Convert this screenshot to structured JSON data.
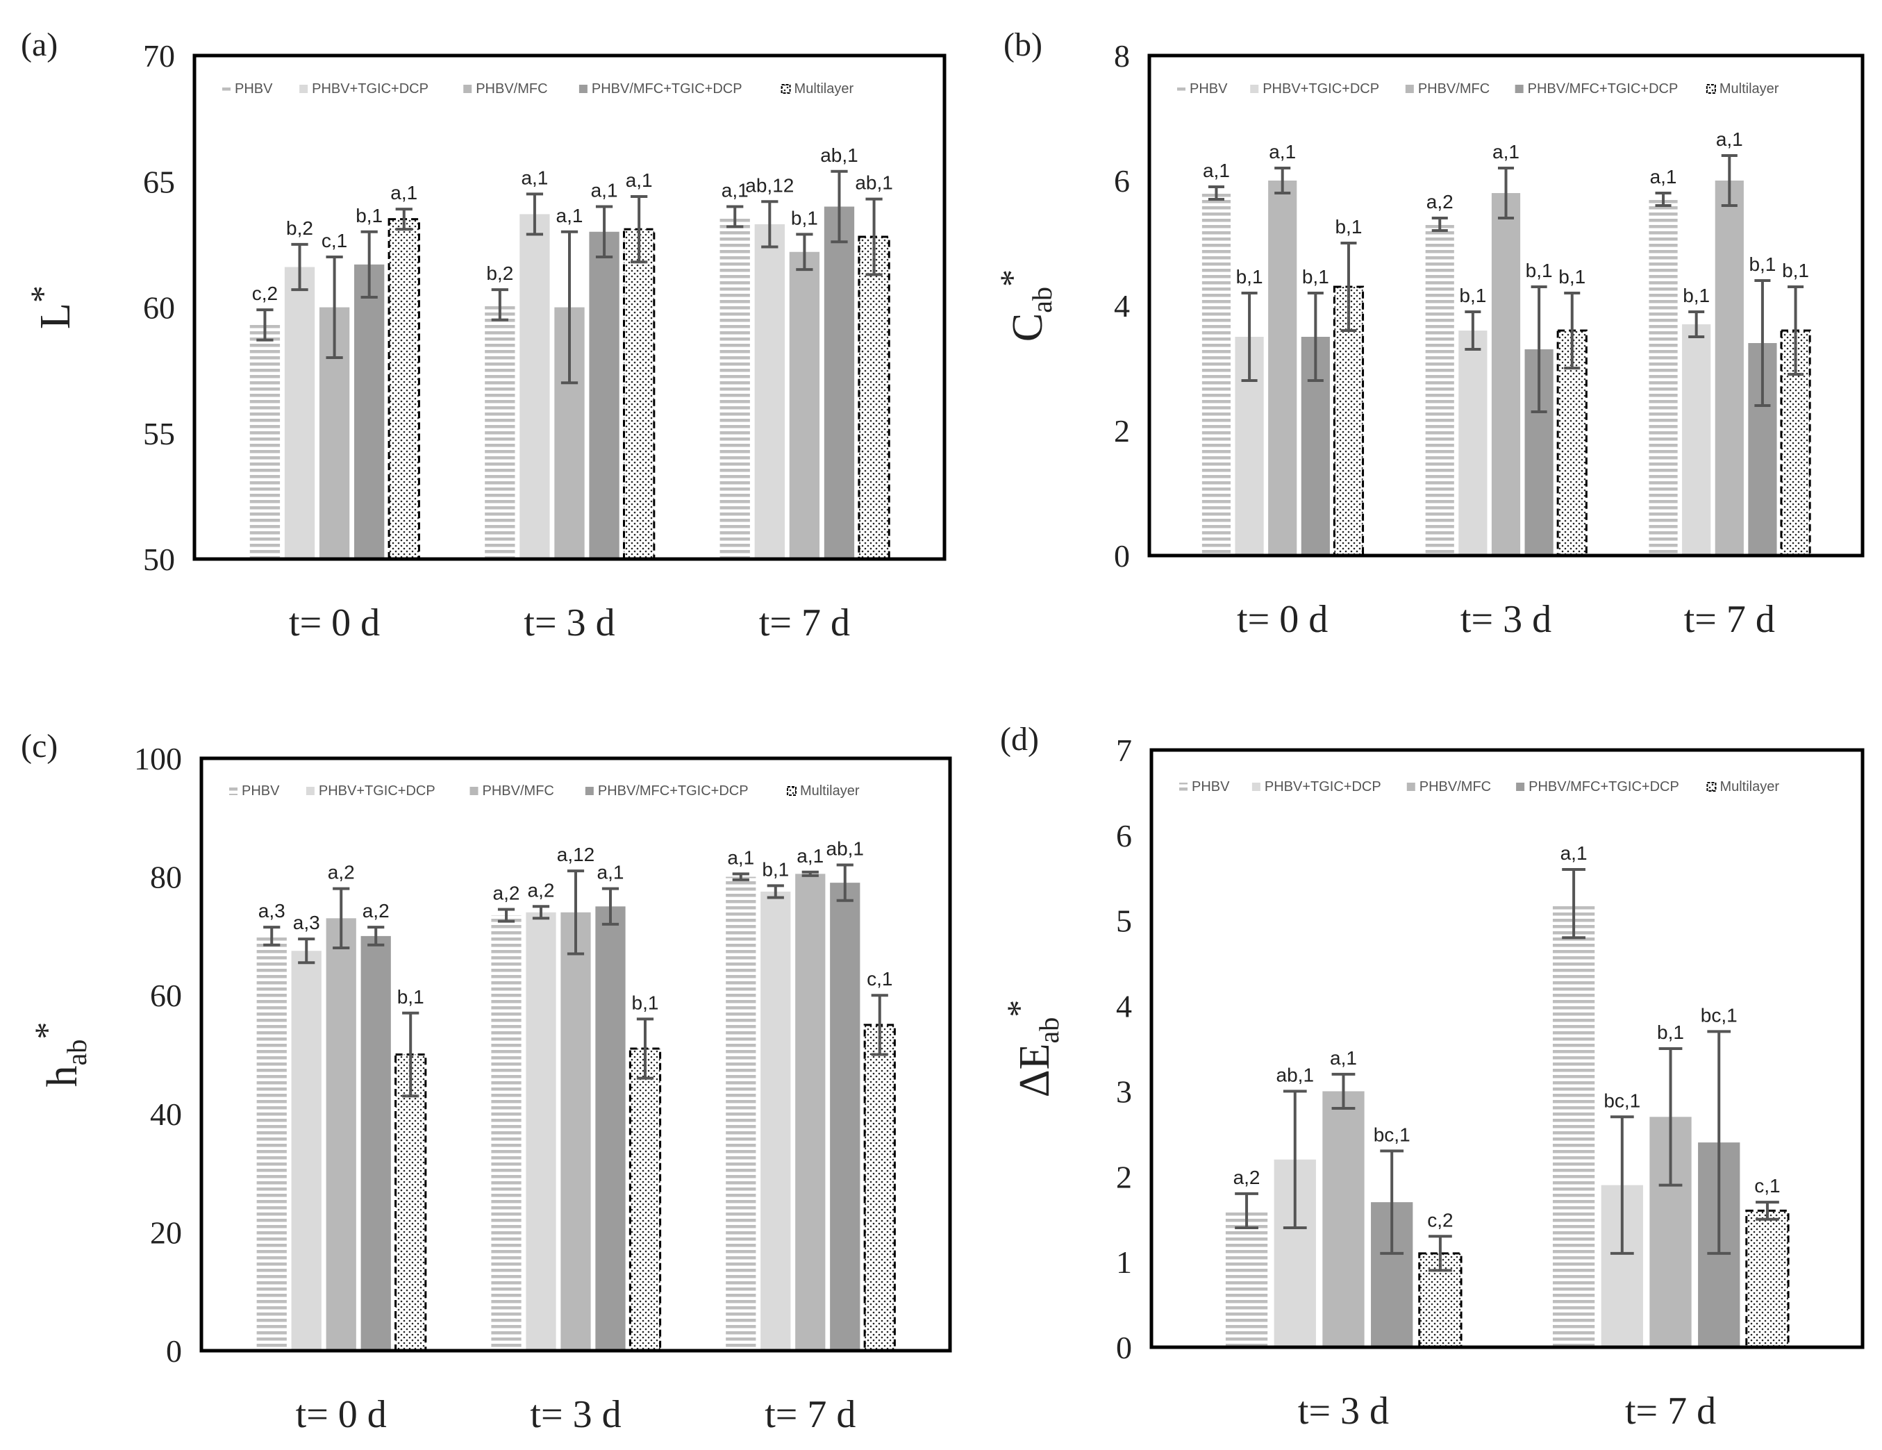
{
  "colors": {
    "PHBV": "#bdbdbd",
    "PHBV+TGIC+DCP": "#dadada",
    "PHBV/MFC": "#b8b8b8",
    "PHBV/MFC+TGIC+DCP": "#9c9c9c",
    "Multilayer": "#ffffff",
    "error_bar": "#555555",
    "axis": "#000000"
  },
  "chart_data": [
    {
      "type": "bar",
      "panel_label": "(a)",
      "ylabel": "L*",
      "ylim": [
        50,
        70
      ],
      "yticks": [
        50,
        55,
        60,
        65,
        70
      ],
      "categories": [
        "t= 0 d",
        "t= 3 d",
        "t= 7 d"
      ],
      "legend": [
        "PHBV",
        "PHBV+TGIC+DCP",
        "PHBV/MFC",
        "PHBV/MFC+TGIC+DCP",
        "Multilayer"
      ],
      "series": [
        {
          "name": "PHBV",
          "values": [
            59.3,
            60.1,
            63.6
          ],
          "errors": [
            0.6,
            0.6,
            0.4
          ],
          "labels": [
            "c,2",
            "b,2",
            "a,1"
          ]
        },
        {
          "name": "PHBV+TGIC+DCP",
          "values": [
            61.6,
            63.7,
            63.3
          ],
          "errors": [
            0.9,
            0.8,
            0.9
          ],
          "labels": [
            "b,2",
            "a,1",
            "ab,12"
          ]
        },
        {
          "name": "PHBV/MFC",
          "values": [
            60.0,
            60.0,
            62.2
          ],
          "errors": [
            2.0,
            3.0,
            0.7
          ],
          "labels": [
            "c,1",
            "a,1",
            "b,1"
          ]
        },
        {
          "name": "PHBV/MFC+TGIC+DCP",
          "values": [
            61.7,
            63.0,
            64.0
          ],
          "errors": [
            1.3,
            1.0,
            1.4
          ],
          "labels": [
            "b,1",
            "a,1",
            "ab,1"
          ]
        },
        {
          "name": "Multilayer",
          "values": [
            63.5,
            63.1,
            62.8
          ],
          "errors": [
            0.4,
            1.3,
            1.5
          ],
          "labels": [
            "a,1",
            "a,1",
            "ab,1"
          ]
        }
      ]
    },
    {
      "type": "bar",
      "panel_label": "(b)",
      "ylabel": "Cab*",
      "ylim": [
        0,
        8
      ],
      "yticks": [
        0,
        2,
        4,
        6,
        8
      ],
      "categories": [
        "t= 0 d",
        "t= 3 d",
        "t= 7 d"
      ],
      "legend": [
        "PHBV",
        "PHBV+TGIC+DCP",
        "PHBV/MFC",
        "PHBV/MFC+TGIC+DCP",
        "Multilayer"
      ],
      "series": [
        {
          "name": "PHBV",
          "values": [
            5.8,
            5.3,
            5.7
          ],
          "errors": [
            0.1,
            0.1,
            0.1
          ],
          "labels": [
            "a,1",
            "a,2",
            "a,1"
          ]
        },
        {
          "name": "PHBV+TGIC+DCP",
          "values": [
            3.5,
            3.6,
            3.7
          ],
          "errors": [
            0.7,
            0.3,
            0.2
          ],
          "labels": [
            "b,1",
            "b,1",
            "b,1"
          ]
        },
        {
          "name": "PHBV/MFC",
          "values": [
            6.0,
            5.8,
            6.0
          ],
          "errors": [
            0.2,
            0.4,
            0.4
          ],
          "labels": [
            "a,1",
            "a,1",
            "a,1"
          ]
        },
        {
          "name": "PHBV/MFC+TGIC+DCP",
          "values": [
            3.5,
            3.3,
            3.4
          ],
          "errors": [
            0.7,
            1.0,
            1.0
          ],
          "labels": [
            "b,1",
            "b,1",
            "b,1"
          ]
        },
        {
          "name": "Multilayer",
          "values": [
            4.3,
            3.6,
            3.6
          ],
          "errors": [
            0.7,
            0.6,
            0.7
          ],
          "labels": [
            "b,1",
            "b,1",
            "b,1"
          ]
        }
      ]
    },
    {
      "type": "bar",
      "panel_label": "(c)",
      "ylabel": "hab*",
      "ylim": [
        0,
        100
      ],
      "yticks": [
        0,
        20,
        40,
        60,
        80,
        100
      ],
      "categories": [
        "t= 0 d",
        "t= 3 d",
        "t= 7 d"
      ],
      "legend": [
        "PHBV",
        "PHBV+TGIC+DCP",
        "PHBV/MFC",
        "PHBV/MFC+TGIC+DCP",
        "Multilayer"
      ],
      "series": [
        {
          "name": "PHBV",
          "values": [
            70,
            73.5,
            80
          ],
          "errors": [
            1.5,
            1.0,
            0.5
          ],
          "labels": [
            "a,3",
            "a,2",
            "a,1"
          ]
        },
        {
          "name": "PHBV+TGIC+DCP",
          "values": [
            67.5,
            74,
            77.5
          ],
          "errors": [
            2.0,
            1.0,
            1.0
          ],
          "labels": [
            "a,3",
            "a,2",
            "b,1"
          ]
        },
        {
          "name": "PHBV/MFC",
          "values": [
            73,
            74,
            80.5
          ],
          "errors": [
            5.0,
            7.0,
            0.3
          ],
          "labels": [
            "a,2",
            "a,12",
            "a,1"
          ]
        },
        {
          "name": "PHBV/MFC+TGIC+DCP",
          "values": [
            70,
            75,
            79
          ],
          "errors": [
            1.5,
            3.0,
            3.0
          ],
          "labels": [
            "a,2",
            "a,1",
            "ab,1"
          ]
        },
        {
          "name": "Multilayer",
          "values": [
            50,
            51,
            55
          ],
          "errors": [
            7.0,
            5.0,
            5.0
          ],
          "labels": [
            "b,1",
            "b,1",
            "c,1"
          ]
        }
      ]
    },
    {
      "type": "bar",
      "panel_label": "(d)",
      "ylabel": "ΔEab*",
      "ylim": [
        0,
        7
      ],
      "yticks": [
        0,
        1,
        2,
        3,
        4,
        5,
        6,
        7
      ],
      "categories": [
        "t= 3 d",
        "t= 7 d"
      ],
      "legend": [
        "PHBV",
        "PHBV+TGIC+DCP",
        "PHBV/MFC",
        "PHBV/MFC+TGIC+DCP",
        "Multilayer"
      ],
      "series": [
        {
          "name": "PHBV",
          "values": [
            1.6,
            5.2
          ],
          "errors": [
            0.2,
            0.4
          ],
          "labels": [
            "a,2",
            "a,1"
          ]
        },
        {
          "name": "PHBV+TGIC+DCP",
          "values": [
            2.2,
            1.9
          ],
          "errors": [
            0.8,
            0.8
          ],
          "labels": [
            "ab,1",
            "bc,1"
          ]
        },
        {
          "name": "PHBV/MFC",
          "values": [
            3.0,
            2.7
          ],
          "errors": [
            0.2,
            0.8
          ],
          "labels": [
            "a,1",
            "b,1"
          ]
        },
        {
          "name": "PHBV/MFC+TGIC+DCP",
          "values": [
            1.7,
            2.4
          ],
          "errors": [
            0.6,
            1.3
          ],
          "labels": [
            "bc,1",
            "bc,1"
          ]
        },
        {
          "name": "Multilayer",
          "values": [
            1.1,
            1.6
          ],
          "errors": [
            0.2,
            0.1
          ],
          "labels": [
            "c,2",
            "c,1"
          ]
        }
      ]
    }
  ]
}
